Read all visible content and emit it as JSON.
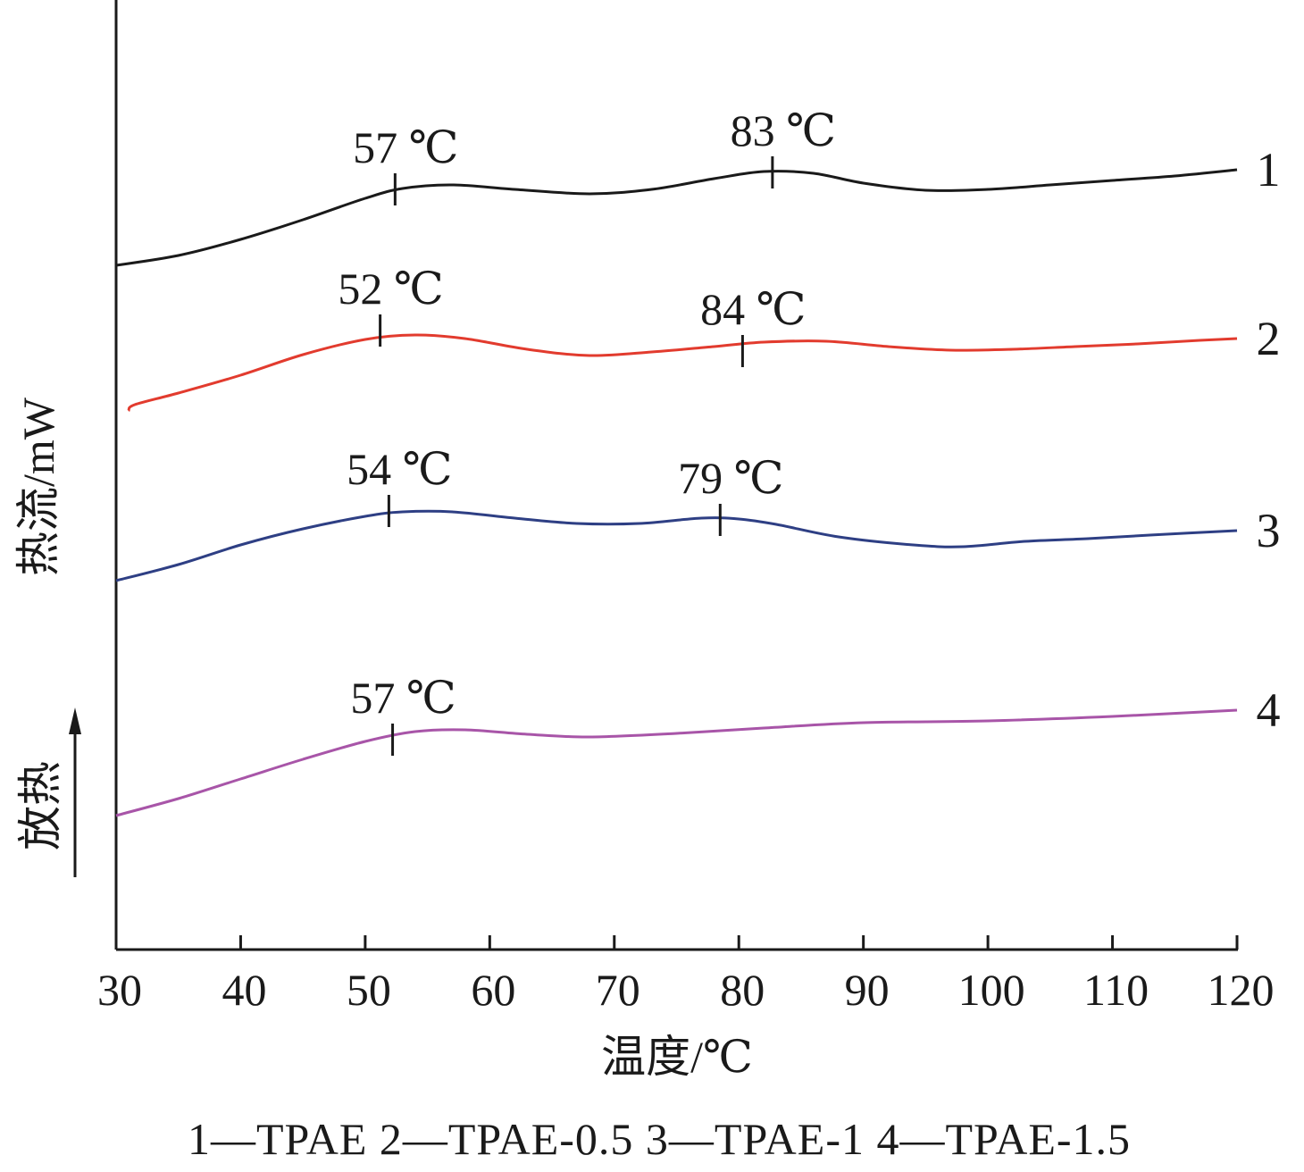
{
  "chart_data": {
    "type": "line",
    "xlabel": "温度/℃",
    "ylabel": "热流/mW",
    "exo_label": "放热",
    "xlim": [
      30,
      120
    ],
    "xticks": [
      30,
      40,
      50,
      60,
      70,
      80,
      90,
      100,
      110,
      120
    ],
    "legend_text": "1—TPAE   2—TPAE-0.5   3—TPAE-1   4—TPAE-1.5",
    "grid": false,
    "series": [
      {
        "name": "TPAE",
        "label": "1",
        "color": "#1a1a1a",
        "points": [
          [
            30,
            297
          ],
          [
            35,
            286
          ],
          [
            40,
            268
          ],
          [
            45,
            246
          ],
          [
            50,
            222
          ],
          [
            53,
            211
          ],
          [
            57,
            207
          ],
          [
            62,
            212
          ],
          [
            68,
            217
          ],
          [
            73,
            212
          ],
          [
            78,
            200
          ],
          [
            82,
            192
          ],
          [
            86,
            194
          ],
          [
            90,
            205
          ],
          [
            95,
            213
          ],
          [
            100,
            212
          ],
          [
            105,
            207
          ],
          [
            110,
            202
          ],
          [
            115,
            197
          ],
          [
            120,
            190
          ]
        ],
        "annotations": [
          {
            "x": 52.4,
            "y": 212,
            "text": "57 ℃"
          },
          {
            "x": 82.7,
            "y": 193,
            "text": "83 ℃"
          }
        ]
      },
      {
        "name": "TPAE-0.5",
        "label": "2",
        "color": "#e23b2e",
        "points": [
          [
            31,
            460
          ],
          [
            31.5,
            453
          ],
          [
            35,
            440
          ],
          [
            40,
            420
          ],
          [
            45,
            397
          ],
          [
            50,
            380
          ],
          [
            54,
            375
          ],
          [
            58,
            379
          ],
          [
            63,
            391
          ],
          [
            68,
            398
          ],
          [
            73,
            394
          ],
          [
            78,
            388
          ],
          [
            82,
            383
          ],
          [
            87,
            382
          ],
          [
            92,
            388
          ],
          [
            97,
            392
          ],
          [
            102,
            391
          ],
          [
            107,
            388
          ],
          [
            112,
            385
          ],
          [
            117,
            381
          ],
          [
            120,
            379
          ]
        ],
        "annotations": [
          {
            "x": 51.2,
            "y": 370,
            "text": "52 ℃"
          },
          {
            "x": 80.3,
            "y": 393,
            "text": "84 ℃"
          }
        ]
      },
      {
        "name": "TPAE-1",
        "label": "3",
        "color": "#2e3f84",
        "points": [
          [
            30,
            650
          ],
          [
            35,
            632
          ],
          [
            40,
            610
          ],
          [
            45,
            592
          ],
          [
            50,
            578
          ],
          [
            53,
            573
          ],
          [
            57,
            573
          ],
          [
            62,
            580
          ],
          [
            67,
            586
          ],
          [
            72,
            586
          ],
          [
            77,
            580
          ],
          [
            80,
            581
          ],
          [
            83,
            587
          ],
          [
            88,
            601
          ],
          [
            94,
            610
          ],
          [
            98,
            612
          ],
          [
            103,
            606
          ],
          [
            108,
            603
          ],
          [
            113,
            599
          ],
          [
            120,
            594
          ]
        ],
        "annotations": [
          {
            "x": 51.9,
            "y": 572,
            "text": "54 ℃"
          },
          {
            "x": 78.5,
            "y": 582,
            "text": "79 ℃"
          }
        ]
      },
      {
        "name": "TPAE-1.5",
        "label": "4",
        "color": "#a855a8",
        "points": [
          [
            30,
            913
          ],
          [
            35,
            894
          ],
          [
            40,
            872
          ],
          [
            45,
            850
          ],
          [
            50,
            830
          ],
          [
            54,
            819
          ],
          [
            58,
            817
          ],
          [
            63,
            822
          ],
          [
            68,
            825
          ],
          [
            75,
            821
          ],
          [
            82,
            815
          ],
          [
            90,
            809
          ],
          [
            100,
            807
          ],
          [
            110,
            802
          ],
          [
            120,
            795
          ]
        ],
        "annotations": [
          {
            "x": 52.2,
            "y": 828,
            "text": "57 ℃"
          }
        ]
      }
    ]
  }
}
